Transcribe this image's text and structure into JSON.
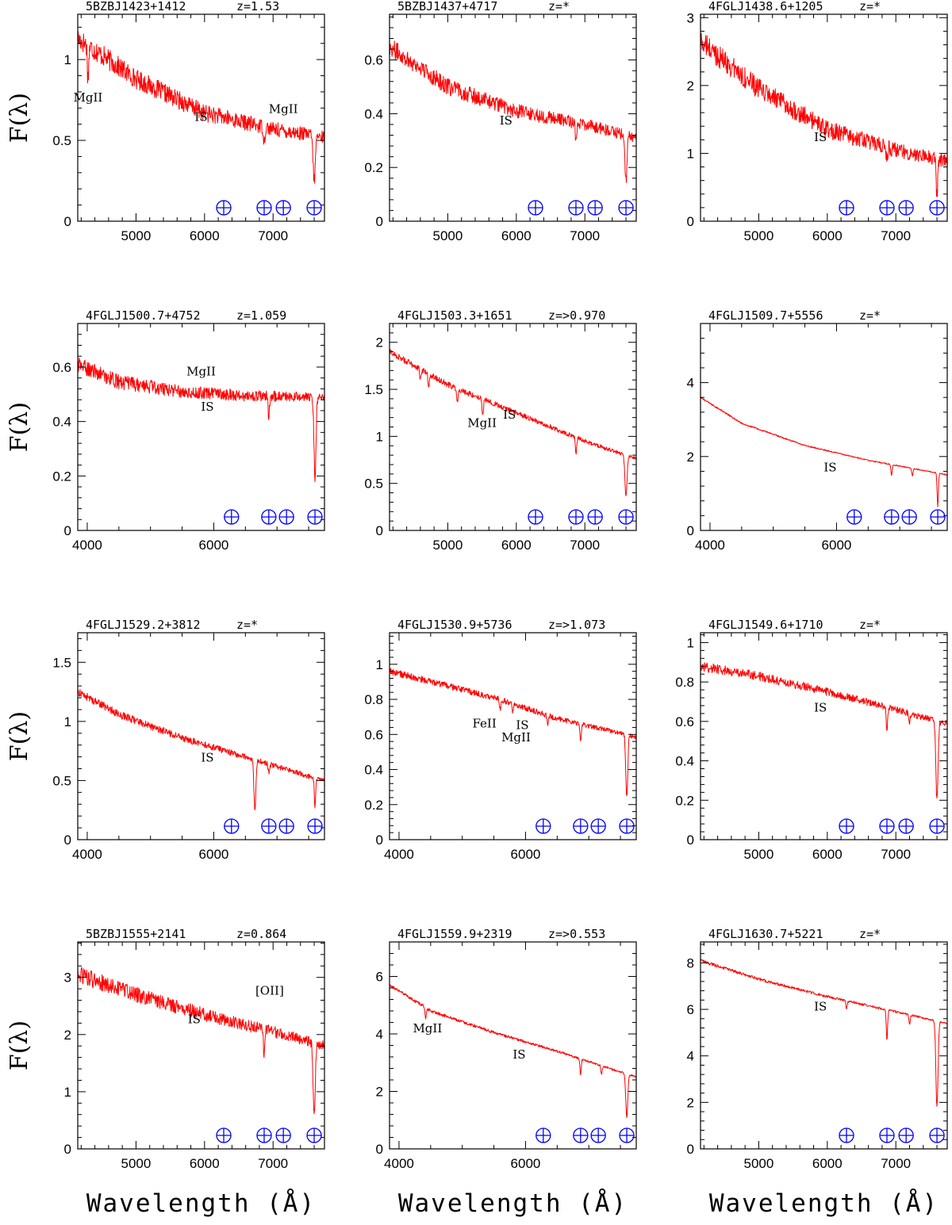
{
  "figure": {
    "xlabel": "Wavelength (Å)",
    "ylabel": "F(λ)"
  },
  "colors": {
    "spectrum": "#ff0000",
    "telluric": "#0000ff",
    "axes": "#000000"
  },
  "telluric_symbol": "earth-symbol",
  "telluric_wavelengths": [
    6280,
    6870,
    7150,
    7600
  ],
  "chart_data": [
    {
      "type": "line",
      "name": "5BZBJ1423+1412",
      "z": "z=1.53",
      "xlim": [
        4150,
        7750
      ],
      "ylim": [
        0,
        1.28
      ],
      "xticks": [
        5000,
        6000,
        7000
      ],
      "yticks": [
        0,
        0.5,
        1
      ],
      "ytick_labels": [
        "0",
        "0.5",
        "1"
      ],
      "continuum": {
        "x": [
          4150,
          5000,
          6000,
          7000,
          7600,
          7750
        ],
        "y": [
          1.13,
          0.88,
          0.67,
          0.57,
          0.53,
          0.52
        ]
      },
      "noise": 0.06,
      "dips": [
        {
          "x": 4300,
          "depth": 0.2
        },
        {
          "x": 6870,
          "depth": 0.1
        },
        {
          "x": 7600,
          "depth": 0.28
        }
      ],
      "labels": [
        {
          "text": "MgII",
          "x": 4300,
          "y": 0.74
        },
        {
          "text": "IS",
          "x": 5950,
          "y": 0.62
        },
        {
          "text": "MgII",
          "x": 7150,
          "y": 0.67
        }
      ]
    },
    {
      "type": "line",
      "name": "5BZBJ1437+4717",
      "z": "z=*",
      "xlim": [
        4150,
        7750
      ],
      "ylim": [
        0,
        0.77
      ],
      "xticks": [
        5000,
        6000,
        7000
      ],
      "yticks": [
        0,
        0.2,
        0.4,
        0.6
      ],
      "ytick_labels": [
        "0",
        "0.2",
        "0.4",
        "0.6"
      ],
      "continuum": {
        "x": [
          4150,
          5000,
          6000,
          7000,
          7600,
          7750
        ],
        "y": [
          0.65,
          0.5,
          0.41,
          0.36,
          0.32,
          0.31
        ]
      },
      "noise": 0.03,
      "dips": [
        {
          "x": 6870,
          "depth": 0.06
        },
        {
          "x": 7600,
          "depth": 0.17
        }
      ],
      "labels": [
        {
          "text": "IS",
          "x": 5850,
          "y": 0.36
        }
      ]
    },
    {
      "type": "line",
      "name": "4FGLJ1438.6+1205",
      "z": "z=*",
      "xlim": [
        4150,
        7750
      ],
      "ylim": [
        0,
        3.05
      ],
      "xticks": [
        5000,
        6000,
        7000
      ],
      "yticks": [
        0,
        1,
        2,
        3
      ],
      "ytick_labels": [
        "0",
        "1",
        "2",
        "3"
      ],
      "continuum": {
        "x": [
          4150,
          5000,
          6000,
          7000,
          7600,
          7750
        ],
        "y": [
          2.65,
          1.95,
          1.35,
          1.05,
          0.92,
          0.88
        ]
      },
      "noise": 0.15,
      "dips": [
        {
          "x": 6870,
          "depth": 0.22
        },
        {
          "x": 7600,
          "depth": 0.55
        }
      ],
      "labels": [
        {
          "text": "IS",
          "x": 5900,
          "y": 1.18
        }
      ]
    },
    {
      "type": "line",
      "name": "4FGLJ1500.7+4752",
      "z": "z=1.059",
      "xlim": [
        3850,
        7750
      ],
      "ylim": [
        0,
        0.76
      ],
      "xticks": [
        4000,
        6000
      ],
      "yticks": [
        0,
        0.2,
        0.4,
        0.6
      ],
      "ytick_labels": [
        "0",
        "0.2",
        "0.4",
        "0.6"
      ],
      "continuum": {
        "x": [
          3850,
          4500,
          5500,
          6500,
          7600,
          7750
        ],
        "y": [
          0.61,
          0.545,
          0.51,
          0.495,
          0.49,
          0.49
        ]
      },
      "noise": 0.025,
      "dips": [
        {
          "x": 6870,
          "depth": 0.08
        },
        {
          "x": 7600,
          "depth": 0.3
        }
      ],
      "labels": [
        {
          "text": "MgII",
          "x": 5800,
          "y": 0.57
        },
        {
          "text": "IS",
          "x": 5900,
          "y": 0.44
        }
      ]
    },
    {
      "type": "line",
      "name": "4FGLJ1503.3+1651",
      "z": "z=>0.970",
      "xlim": [
        4150,
        7750
      ],
      "ylim": [
        0,
        2.2
      ],
      "xticks": [
        5000,
        6000,
        7000
      ],
      "yticks": [
        0,
        0.5,
        1,
        1.5,
        2
      ],
      "ytick_labels": [
        "0",
        "0.5",
        "1",
        "1.5",
        "2"
      ],
      "continuum": {
        "x": [
          4150,
          5000,
          6000,
          7000,
          7600,
          7750
        ],
        "y": [
          1.9,
          1.55,
          1.25,
          0.95,
          0.8,
          0.76
        ]
      },
      "noise": 0.03,
      "dips": [
        {
          "x": 4600,
          "depth": 0.12
        },
        {
          "x": 4720,
          "depth": 0.12
        },
        {
          "x": 5140,
          "depth": 0.14
        },
        {
          "x": 5510,
          "depth": 0.16
        },
        {
          "x": 6870,
          "depth": 0.17
        },
        {
          "x": 7600,
          "depth": 0.45
        }
      ],
      "labels": [
        {
          "text": "MgII",
          "x": 5500,
          "y": 1.1
        },
        {
          "text": "IS",
          "x": 5900,
          "y": 1.19
        }
      ]
    },
    {
      "type": "line",
      "name": "4FGLJ1509.7+5556",
      "z": "z=*",
      "xlim": [
        3850,
        7750
      ],
      "ylim": [
        0,
        5.6
      ],
      "xticks": [
        4000,
        6000
      ],
      "yticks": [
        0,
        2,
        4
      ],
      "ytick_labels": [
        "0",
        "2",
        "4"
      ],
      "continuum": {
        "x": [
          3850,
          4500,
          5500,
          6500,
          7600,
          7750
        ],
        "y": [
          3.6,
          2.9,
          2.3,
          1.9,
          1.55,
          1.5
        ]
      },
      "noise": 0.02,
      "dips": [
        {
          "x": 6870,
          "depth": 0.3
        },
        {
          "x": 7200,
          "depth": 0.2
        },
        {
          "x": 7600,
          "depth": 0.9
        }
      ],
      "labels": [
        {
          "text": "IS",
          "x": 5900,
          "y": 1.6
        }
      ]
    },
    {
      "type": "line",
      "name": "4FGLJ1529.2+3812",
      "z": "z=*",
      "xlim": [
        3850,
        7750
      ],
      "ylim": [
        0,
        1.75
      ],
      "xticks": [
        4000,
        6000
      ],
      "yticks": [
        0,
        0.5,
        1,
        1.5
      ],
      "ytick_labels": [
        "0",
        "0.5",
        "1",
        "1.5"
      ],
      "continuum": {
        "x": [
          3850,
          4500,
          5500,
          6500,
          7600,
          7750
        ],
        "y": [
          1.25,
          1.06,
          0.86,
          0.7,
          0.52,
          0.5
        ]
      },
      "noise": 0.03,
      "dips": [
        {
          "x": 6650,
          "depth": 0.42
        },
        {
          "x": 6870,
          "depth": 0.08
        },
        {
          "x": 7600,
          "depth": 0.25
        }
      ],
      "labels": [
        {
          "text": "IS",
          "x": 5900,
          "y": 0.66
        }
      ]
    },
    {
      "type": "line",
      "name": "4FGLJ1530.9+5736",
      "z": "z=>1.073",
      "xlim": [
        3850,
        7750
      ],
      "ylim": [
        0,
        1.18
      ],
      "xticks": [
        4000,
        6000
      ],
      "yticks": [
        0,
        0.2,
        0.4,
        0.6,
        0.8,
        1
      ],
      "ytick_labels": [
        "0",
        "0.2",
        "0.4",
        "0.6",
        "0.8",
        "1"
      ],
      "continuum": {
        "x": [
          3850,
          4500,
          5500,
          6500,
          7600,
          7750
        ],
        "y": [
          0.96,
          0.9,
          0.81,
          0.69,
          0.6,
          0.58
        ]
      },
      "noise": 0.018,
      "dips": [
        {
          "x": 5600,
          "depth": 0.05
        },
        {
          "x": 5800,
          "depth": 0.05
        },
        {
          "x": 6350,
          "depth": 0.05
        },
        {
          "x": 6870,
          "depth": 0.1
        },
        {
          "x": 7600,
          "depth": 0.36
        }
      ],
      "labels": [
        {
          "text": "FeII",
          "x": 5350,
          "y": 0.64
        },
        {
          "text": "MgII",
          "x": 5850,
          "y": 0.56
        },
        {
          "text": "IS",
          "x": 5950,
          "y": 0.63
        }
      ]
    },
    {
      "type": "line",
      "name": "4FGLJ1549.6+1710",
      "z": "z=*",
      "xlim": [
        4150,
        7750
      ],
      "ylim": [
        0,
        1.05
      ],
      "xticks": [
        5000,
        6000,
        7000
      ],
      "yticks": [
        0,
        0.2,
        0.4,
        0.6,
        0.8,
        1
      ],
      "ytick_labels": [
        "0",
        "0.2",
        "0.4",
        "0.6",
        "0.8",
        "1"
      ],
      "continuum": {
        "x": [
          4150,
          5000,
          6000,
          7000,
          7600,
          7750
        ],
        "y": [
          0.88,
          0.83,
          0.75,
          0.66,
          0.6,
          0.59
        ]
      },
      "noise": 0.022,
      "dips": [
        {
          "x": 6870,
          "depth": 0.12
        },
        {
          "x": 7200,
          "depth": 0.04
        },
        {
          "x": 7600,
          "depth": 0.4
        }
      ],
      "labels": [
        {
          "text": "IS",
          "x": 5900,
          "y": 0.65
        }
      ]
    },
    {
      "type": "line",
      "name": "5BZBJ1555+2141",
      "z": "z=0.864",
      "xlim": [
        4150,
        7750
      ],
      "ylim": [
        0,
        3.62
      ],
      "xticks": [
        5000,
        6000,
        7000
      ],
      "yticks": [
        0,
        1,
        2,
        3
      ],
      "ytick_labels": [
        "0",
        "1",
        "2",
        "3"
      ],
      "continuum": {
        "x": [
          4150,
          5000,
          6000,
          7000,
          7600,
          7750
        ],
        "y": [
          3.05,
          2.7,
          2.35,
          2.05,
          1.85,
          1.8
        ]
      },
      "noise": 0.13,
      "dips": [
        {
          "x": 6870,
          "depth": 0.5
        },
        {
          "x": 7600,
          "depth": 1.3
        }
      ],
      "labels": [
        {
          "text": "IS",
          "x": 5850,
          "y": 2.2
        },
        {
          "text": "[OII]",
          "x": 6950,
          "y": 2.7
        }
      ]
    },
    {
      "type": "line",
      "name": "4FGLJ1559.9+2319",
      "z": "z=>0.553",
      "xlim": [
        3850,
        7750
      ],
      "ylim": [
        0,
        7.2
      ],
      "xticks": [
        4000,
        6000
      ],
      "yticks": [
        0,
        2,
        4,
        6
      ],
      "ytick_labels": [
        "0",
        "2",
        "4",
        "6"
      ],
      "continuum": {
        "x": [
          3850,
          4500,
          5500,
          6500,
          7600,
          7750
        ],
        "y": [
          5.7,
          4.8,
          4.05,
          3.4,
          2.6,
          2.5
        ]
      },
      "noise": 0.05,
      "dips": [
        {
          "x": 4420,
          "depth": 0.35
        },
        {
          "x": 6870,
          "depth": 0.55
        },
        {
          "x": 7200,
          "depth": 0.3
        },
        {
          "x": 7600,
          "depth": 1.5
        }
      ],
      "labels": [
        {
          "text": "MgII",
          "x": 4450,
          "y": 4.05
        },
        {
          "text": "IS",
          "x": 5900,
          "y": 3.15
        }
      ]
    },
    {
      "type": "line",
      "name": "4FGLJ1630.7+5221",
      "z": "z=*",
      "xlim": [
        4150,
        7750
      ],
      "ylim": [
        0,
        8.9
      ],
      "xticks": [
        5000,
        6000,
        7000
      ],
      "yticks": [
        0,
        2,
        4,
        6,
        8
      ],
      "ytick_labels": [
        "0",
        "2",
        "4",
        "6",
        "8"
      ],
      "continuum": {
        "x": [
          4150,
          5000,
          6000,
          7000,
          7600,
          7750
        ],
        "y": [
          8.1,
          7.3,
          6.55,
          5.9,
          5.5,
          5.4
        ]
      },
      "noise": 0.06,
      "dips": [
        {
          "x": 6280,
          "depth": 0.3
        },
        {
          "x": 6870,
          "depth": 1.3
        },
        {
          "x": 7200,
          "depth": 0.4
        },
        {
          "x": 7600,
          "depth": 3.7
        }
      ],
      "labels": [
        {
          "text": "IS",
          "x": 5900,
          "y": 5.95
        }
      ]
    }
  ]
}
